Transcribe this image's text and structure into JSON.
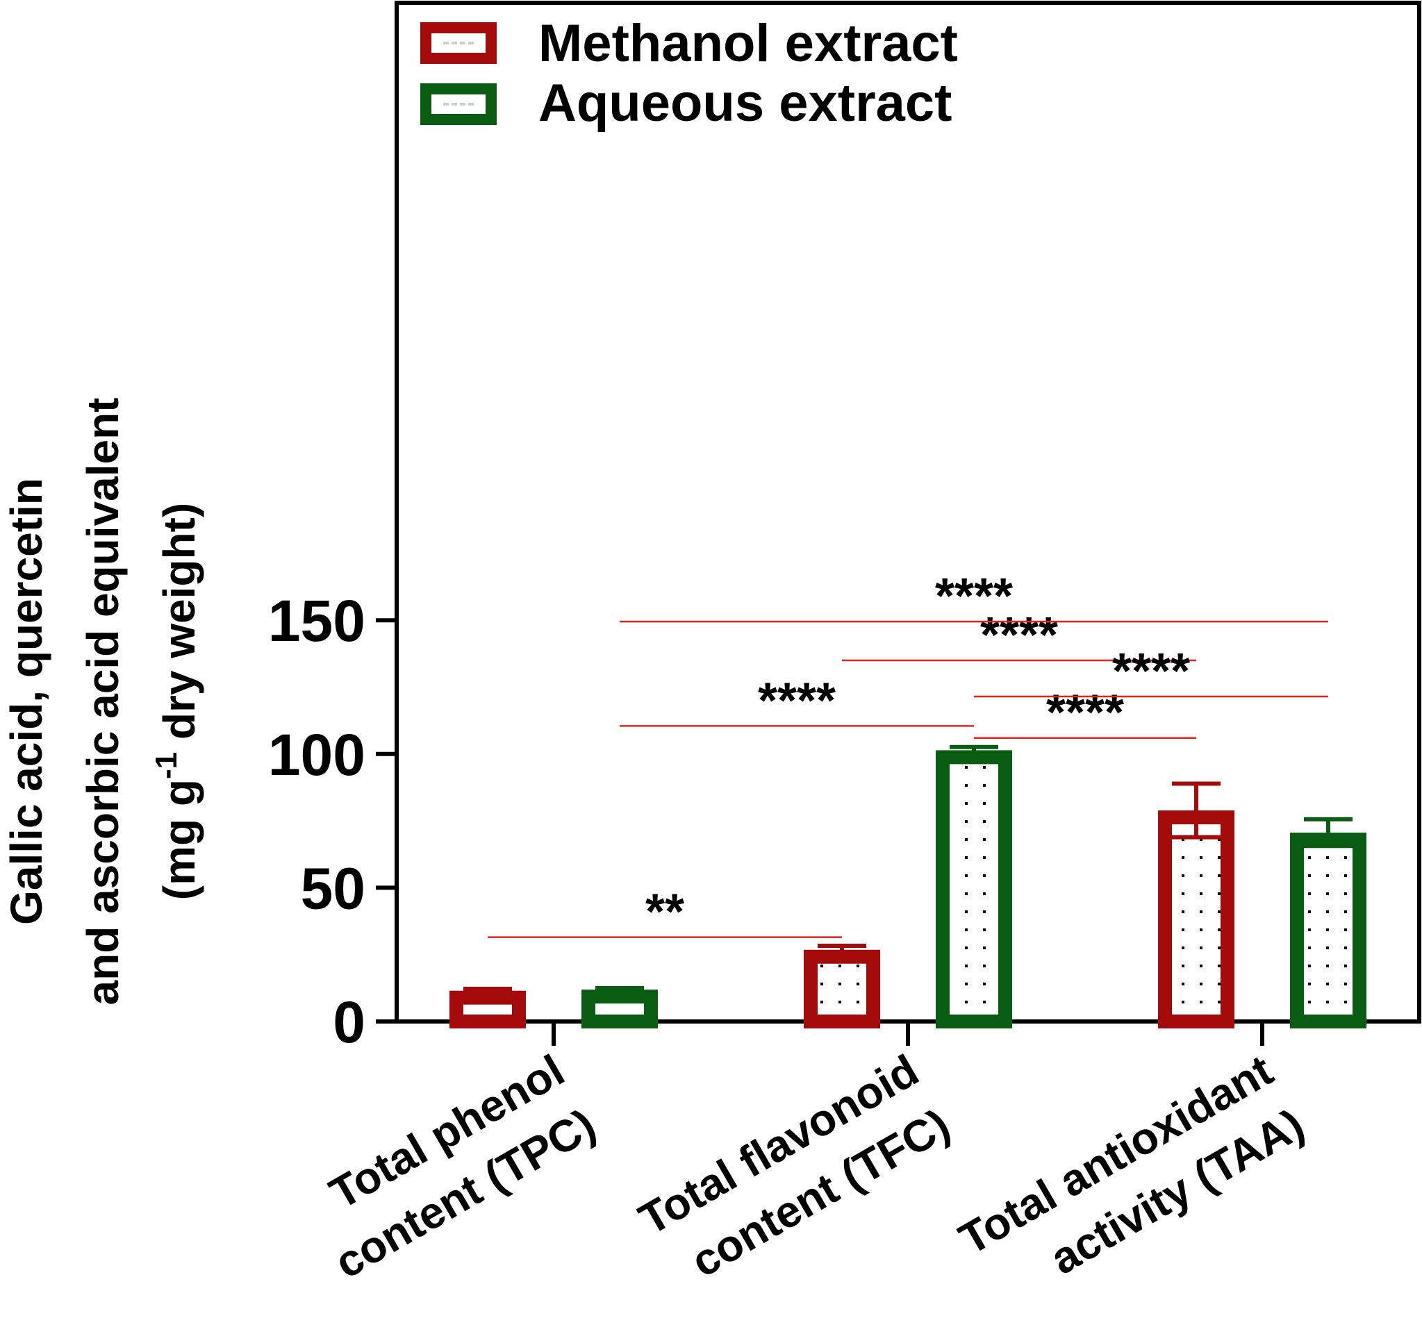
{
  "chart_data": {
    "type": "bar",
    "categories": [
      [
        "Total phenol",
        "content (TPC)"
      ],
      [
        "Total flavonoid",
        "content (TFC)"
      ],
      [
        "Total antioxidant",
        "activity (TAA)"
      ]
    ],
    "series": [
      {
        "name": "Methanol extract",
        "color": "#a50a0a",
        "values": [
          11.5,
          26.8,
          78.9
        ],
        "errors": [
          0.7,
          1.5,
          10
        ]
      },
      {
        "name": "Aqueous extract",
        "color": "#0a5c12",
        "values": [
          11.9,
          101.4,
          70.6
        ],
        "errors": [
          0.6,
          1.2,
          5
        ]
      }
    ],
    "ylabel": [
      "Gallic acid, quercetin",
      "and ascorbic acid equivalent",
      "(mg g",
      "-1",
      " dry weight)"
    ],
    "ylim": [
      0,
      190
    ],
    "yticks": [
      "0",
      "50",
      "100",
      "150"
    ],
    "ytick_values": [
      0,
      50,
      100,
      150
    ],
    "legend_position": "top-left",
    "grid": false,
    "significance": [
      {
        "label": "**",
        "from": [
          0,
          0
        ],
        "to": [
          1,
          0
        ],
        "y": 31.5
      },
      {
        "label": "****",
        "from": [
          0,
          1
        ],
        "to": [
          1,
          1
        ],
        "y": 110.5
      },
      {
        "label": "****",
        "from": [
          1,
          0
        ],
        "to": [
          2,
          0
        ],
        "y": 135
      },
      {
        "label": "****",
        "from": [
          0,
          1
        ],
        "to": [
          2,
          1
        ],
        "y": 149.5
      },
      {
        "label": "****",
        "from": [
          1,
          1
        ],
        "to": [
          2,
          0
        ],
        "y": 106
      },
      {
        "label": "****",
        "from": [
          1,
          1
        ],
        "to": [
          2,
          1
        ],
        "y": 121.5
      }
    ],
    "significance_color": "#e8201c"
  }
}
